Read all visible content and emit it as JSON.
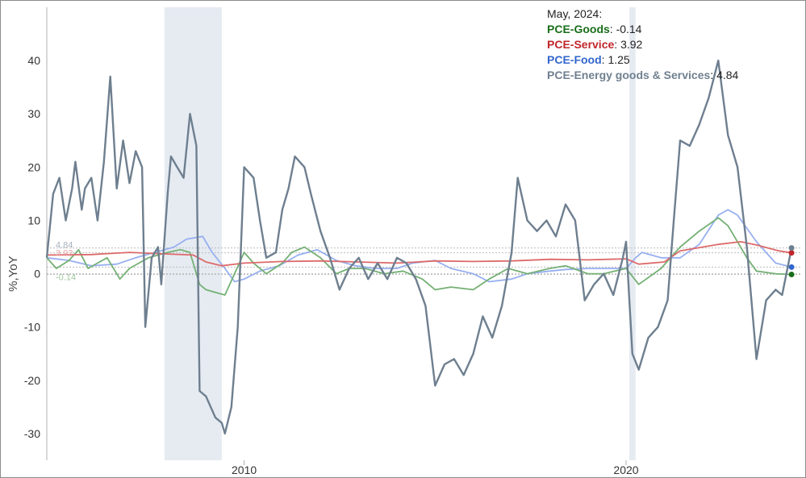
{
  "chart_data": {
    "type": "line",
    "ylabel": "%,YoY",
    "ylim": [
      -35,
      50
    ],
    "xlim": [
      "2004-11-01",
      "2024-08-01"
    ],
    "y_ticks": [
      -30,
      -20,
      -10,
      0,
      10,
      20,
      30,
      40
    ],
    "x_ticks": [
      {
        "date": "2010-01-01",
        "label": "2010"
      },
      {
        "date": "2020-01-01",
        "label": "2020"
      }
    ],
    "grid": false,
    "recessions": [
      {
        "start": "2007-12-01",
        "end": "2009-06-01"
      },
      {
        "start": "2020-02-01",
        "end": "2020-04-01"
      }
    ],
    "legend": {
      "position": "top-right",
      "date_label": "May, 2024:",
      "entries": [
        {
          "name": "PCE-Goods",
          "value": "-0.14",
          "color": "#1a6e1a"
        },
        {
          "name": "PCE-Service",
          "value": "3.92",
          "color": "#c0262a"
        },
        {
          "name": "PCE-Food",
          "value": "1.25",
          "color": "#3366cc"
        },
        {
          "name": "PCE-Energy goods & Services",
          "value": "4.84",
          "color": "#708090"
        }
      ]
    },
    "end_labels": [
      {
        "text": "4.84",
        "value": 4.84,
        "color": "#a9b3bd"
      },
      {
        "text": "3.92",
        "value": 3.92,
        "color": "#e6a3a3"
      },
      {
        "text": "-0.14",
        "value": -0.14,
        "color": "#9fc79f"
      }
    ],
    "series": [
      {
        "name": "PCE-Goods",
        "color": "#74b074",
        "end_dot": "#1a6e1a",
        "points": [
          [
            "2004-11",
            3
          ],
          [
            "2005-02",
            1
          ],
          [
            "2005-06",
            2.5
          ],
          [
            "2005-09",
            4.5
          ],
          [
            "2005-12",
            1
          ],
          [
            "2006-03",
            2
          ],
          [
            "2006-06",
            3
          ],
          [
            "2006-10",
            -1
          ],
          [
            "2007-01",
            1
          ],
          [
            "2007-04",
            2
          ],
          [
            "2007-07",
            3
          ],
          [
            "2007-10",
            3.5
          ],
          [
            "2008-01",
            4
          ],
          [
            "2008-05",
            4.5
          ],
          [
            "2008-08",
            4
          ],
          [
            "2008-11",
            -2
          ],
          [
            "2009-01",
            -3
          ],
          [
            "2009-04",
            -3.5
          ],
          [
            "2009-07",
            -4
          ],
          [
            "2009-10",
            0
          ],
          [
            "2010-01",
            4
          ],
          [
            "2010-04",
            2
          ],
          [
            "2010-08",
            0
          ],
          [
            "2011-01",
            2
          ],
          [
            "2011-04",
            4
          ],
          [
            "2011-08",
            5
          ],
          [
            "2012-01",
            3
          ],
          [
            "2012-06",
            0
          ],
          [
            "2012-10",
            1
          ],
          [
            "2013-03",
            1
          ],
          [
            "2013-09",
            0
          ],
          [
            "2014-03",
            0.5
          ],
          [
            "2014-09",
            -1
          ],
          [
            "2015-01",
            -3
          ],
          [
            "2015-06",
            -2.5
          ],
          [
            "2016-01",
            -3
          ],
          [
            "2016-06",
            -1
          ],
          [
            "2016-12",
            1
          ],
          [
            "2017-06",
            0
          ],
          [
            "2018-01",
            1
          ],
          [
            "2018-06",
            1.5
          ],
          [
            "2019-01",
            0
          ],
          [
            "2019-06",
            0
          ],
          [
            "2020-01",
            1
          ],
          [
            "2020-05",
            -2
          ],
          [
            "2020-12",
            1
          ],
          [
            "2021-03",
            3
          ],
          [
            "2021-06",
            5
          ],
          [
            "2021-12",
            8
          ],
          [
            "2022-06",
            10.5
          ],
          [
            "2022-09",
            9
          ],
          [
            "2022-12",
            6
          ],
          [
            "2023-03",
            3
          ],
          [
            "2023-06",
            0.5
          ],
          [
            "2023-12",
            0
          ],
          [
            "2024-05",
            -0.14
          ]
        ]
      },
      {
        "name": "PCE-Service",
        "color": "#dd6a6a",
        "end_dot": "#c0262a",
        "points": [
          [
            "2004-11",
            3.5
          ],
          [
            "2006-01",
            3.6
          ],
          [
            "2007-01",
            4
          ],
          [
            "2008-01",
            3.7
          ],
          [
            "2008-09",
            3.5
          ],
          [
            "2009-01",
            2.2
          ],
          [
            "2009-06",
            1.5
          ],
          [
            "2010-01",
            2
          ],
          [
            "2011-01",
            2.3
          ],
          [
            "2012-01",
            2.4
          ],
          [
            "2013-01",
            2.2
          ],
          [
            "2014-01",
            2
          ],
          [
            "2015-01",
            2.4
          ],
          [
            "2016-01",
            2.3
          ],
          [
            "2017-01",
            2.4
          ],
          [
            "2018-01",
            2.7
          ],
          [
            "2019-01",
            2.6
          ],
          [
            "2020-01",
            2.8
          ],
          [
            "2020-05",
            1.8
          ],
          [
            "2021-01",
            2.2
          ],
          [
            "2021-06",
            4.3
          ],
          [
            "2022-01",
            5
          ],
          [
            "2022-06",
            5.5
          ],
          [
            "2023-01",
            6
          ],
          [
            "2023-06",
            5.4
          ],
          [
            "2024-01",
            4.3
          ],
          [
            "2024-05",
            3.92
          ]
        ]
      },
      {
        "name": "PCE-Food",
        "color": "#97aff0",
        "end_dot": "#3366cc",
        "points": [
          [
            "2004-11",
            3
          ],
          [
            "2005-06",
            2.5
          ],
          [
            "2006-01",
            1.5
          ],
          [
            "2006-09",
            1.8
          ],
          [
            "2007-03",
            3
          ],
          [
            "2007-09",
            4
          ],
          [
            "2008-03",
            5
          ],
          [
            "2008-07",
            6.5
          ],
          [
            "2008-12",
            7
          ],
          [
            "2009-03",
            4
          ],
          [
            "2009-07",
            1
          ],
          [
            "2009-10",
            -1.5
          ],
          [
            "2010-01",
            -1
          ],
          [
            "2010-06",
            0.5
          ],
          [
            "2010-12",
            1.5
          ],
          [
            "2011-06",
            3.5
          ],
          [
            "2011-12",
            4.5
          ],
          [
            "2012-06",
            2.5
          ],
          [
            "2012-12",
            1.5
          ],
          [
            "2013-06",
            1
          ],
          [
            "2014-01",
            1
          ],
          [
            "2014-06",
            2
          ],
          [
            "2015-01",
            2.5
          ],
          [
            "2015-06",
            1
          ],
          [
            "2016-01",
            0
          ],
          [
            "2016-06",
            -1.5
          ],
          [
            "2017-01",
            -1
          ],
          [
            "2017-06",
            0
          ],
          [
            "2018-01",
            0.5
          ],
          [
            "2018-06",
            0.8
          ],
          [
            "2019-01",
            1
          ],
          [
            "2019-06",
            1
          ],
          [
            "2020-01",
            1
          ],
          [
            "2020-04",
            3
          ],
          [
            "2020-06",
            4
          ],
          [
            "2020-12",
            3
          ],
          [
            "2021-06",
            3
          ],
          [
            "2021-12",
            5.5
          ],
          [
            "2022-06",
            11
          ],
          [
            "2022-09",
            12
          ],
          [
            "2022-12",
            11
          ],
          [
            "2023-06",
            6
          ],
          [
            "2023-12",
            2
          ],
          [
            "2024-05",
            1.25
          ]
        ]
      },
      {
        "name": "PCE-Energy goods & Services",
        "color": "#6e7f8f",
        "end_dot": "#6e7f8f",
        "points": [
          [
            "2004-11",
            3
          ],
          [
            "2005-01",
            15
          ],
          [
            "2005-03",
            18
          ],
          [
            "2005-05",
            10
          ],
          [
            "2005-07",
            16
          ],
          [
            "2005-08",
            21
          ],
          [
            "2005-10",
            12
          ],
          [
            "2005-11",
            16
          ],
          [
            "2006-01",
            18
          ],
          [
            "2006-03",
            10
          ],
          [
            "2006-05",
            21
          ],
          [
            "2006-07",
            37
          ],
          [
            "2006-09",
            16
          ],
          [
            "2006-11",
            25
          ],
          [
            "2007-01",
            17
          ],
          [
            "2007-03",
            23
          ],
          [
            "2007-05",
            20
          ],
          [
            "2007-06",
            -10
          ],
          [
            "2007-08",
            3
          ],
          [
            "2007-10",
            5
          ],
          [
            "2007-11",
            -2
          ],
          [
            "2008-01",
            15
          ],
          [
            "2008-02",
            22
          ],
          [
            "2008-04",
            20
          ],
          [
            "2008-06",
            18
          ],
          [
            "2008-08",
            30
          ],
          [
            "2008-10",
            24
          ],
          [
            "2008-11",
            -22
          ],
          [
            "2009-01",
            -23
          ],
          [
            "2009-04",
            -27
          ],
          [
            "2009-06",
            -28
          ],
          [
            "2009-07",
            -30
          ],
          [
            "2009-09",
            -25
          ],
          [
            "2009-11",
            -10
          ],
          [
            "2010-01",
            20
          ],
          [
            "2010-04",
            18
          ],
          [
            "2010-06",
            10
          ],
          [
            "2010-08",
            3
          ],
          [
            "2010-11",
            4
          ],
          [
            "2011-01",
            12
          ],
          [
            "2011-03",
            16
          ],
          [
            "2011-05",
            22
          ],
          [
            "2011-08",
            20
          ],
          [
            "2011-10",
            15
          ],
          [
            "2012-01",
            8
          ],
          [
            "2012-04",
            3
          ],
          [
            "2012-07",
            -3
          ],
          [
            "2012-10",
            1
          ],
          [
            "2013-01",
            3
          ],
          [
            "2013-04",
            -1
          ],
          [
            "2013-07",
            2
          ],
          [
            "2013-10",
            -1
          ],
          [
            "2014-01",
            3
          ],
          [
            "2014-04",
            2
          ],
          [
            "2014-07",
            -1
          ],
          [
            "2014-10",
            -6
          ],
          [
            "2015-01",
            -21
          ],
          [
            "2015-04",
            -17
          ],
          [
            "2015-07",
            -16
          ],
          [
            "2015-10",
            -19
          ],
          [
            "2016-01",
            -15
          ],
          [
            "2016-04",
            -8
          ],
          [
            "2016-07",
            -12
          ],
          [
            "2016-10",
            -6
          ],
          [
            "2017-01",
            4
          ],
          [
            "2017-03",
            18
          ],
          [
            "2017-06",
            10
          ],
          [
            "2017-09",
            8
          ],
          [
            "2017-12",
            10
          ],
          [
            "2018-03",
            7
          ],
          [
            "2018-06",
            13
          ],
          [
            "2018-09",
            10
          ],
          [
            "2018-12",
            -5
          ],
          [
            "2019-03",
            -2
          ],
          [
            "2019-06",
            0
          ],
          [
            "2019-09",
            -4
          ],
          [
            "2019-12",
            3
          ],
          [
            "2020-01",
            6
          ],
          [
            "2020-03",
            -15
          ],
          [
            "2020-05",
            -18
          ],
          [
            "2020-08",
            -12
          ],
          [
            "2020-11",
            -10
          ],
          [
            "2021-02",
            -5
          ],
          [
            "2021-04",
            10
          ],
          [
            "2021-06",
            25
          ],
          [
            "2021-09",
            24
          ],
          [
            "2021-12",
            28
          ],
          [
            "2022-03",
            33
          ],
          [
            "2022-06",
            40
          ],
          [
            "2022-09",
            26
          ],
          [
            "2022-12",
            20
          ],
          [
            "2023-03",
            5
          ],
          [
            "2023-06",
            -16
          ],
          [
            "2023-09",
            -5
          ],
          [
            "2023-12",
            -3
          ],
          [
            "2024-02",
            -4
          ],
          [
            "2024-05",
            4.84
          ]
        ]
      }
    ]
  }
}
